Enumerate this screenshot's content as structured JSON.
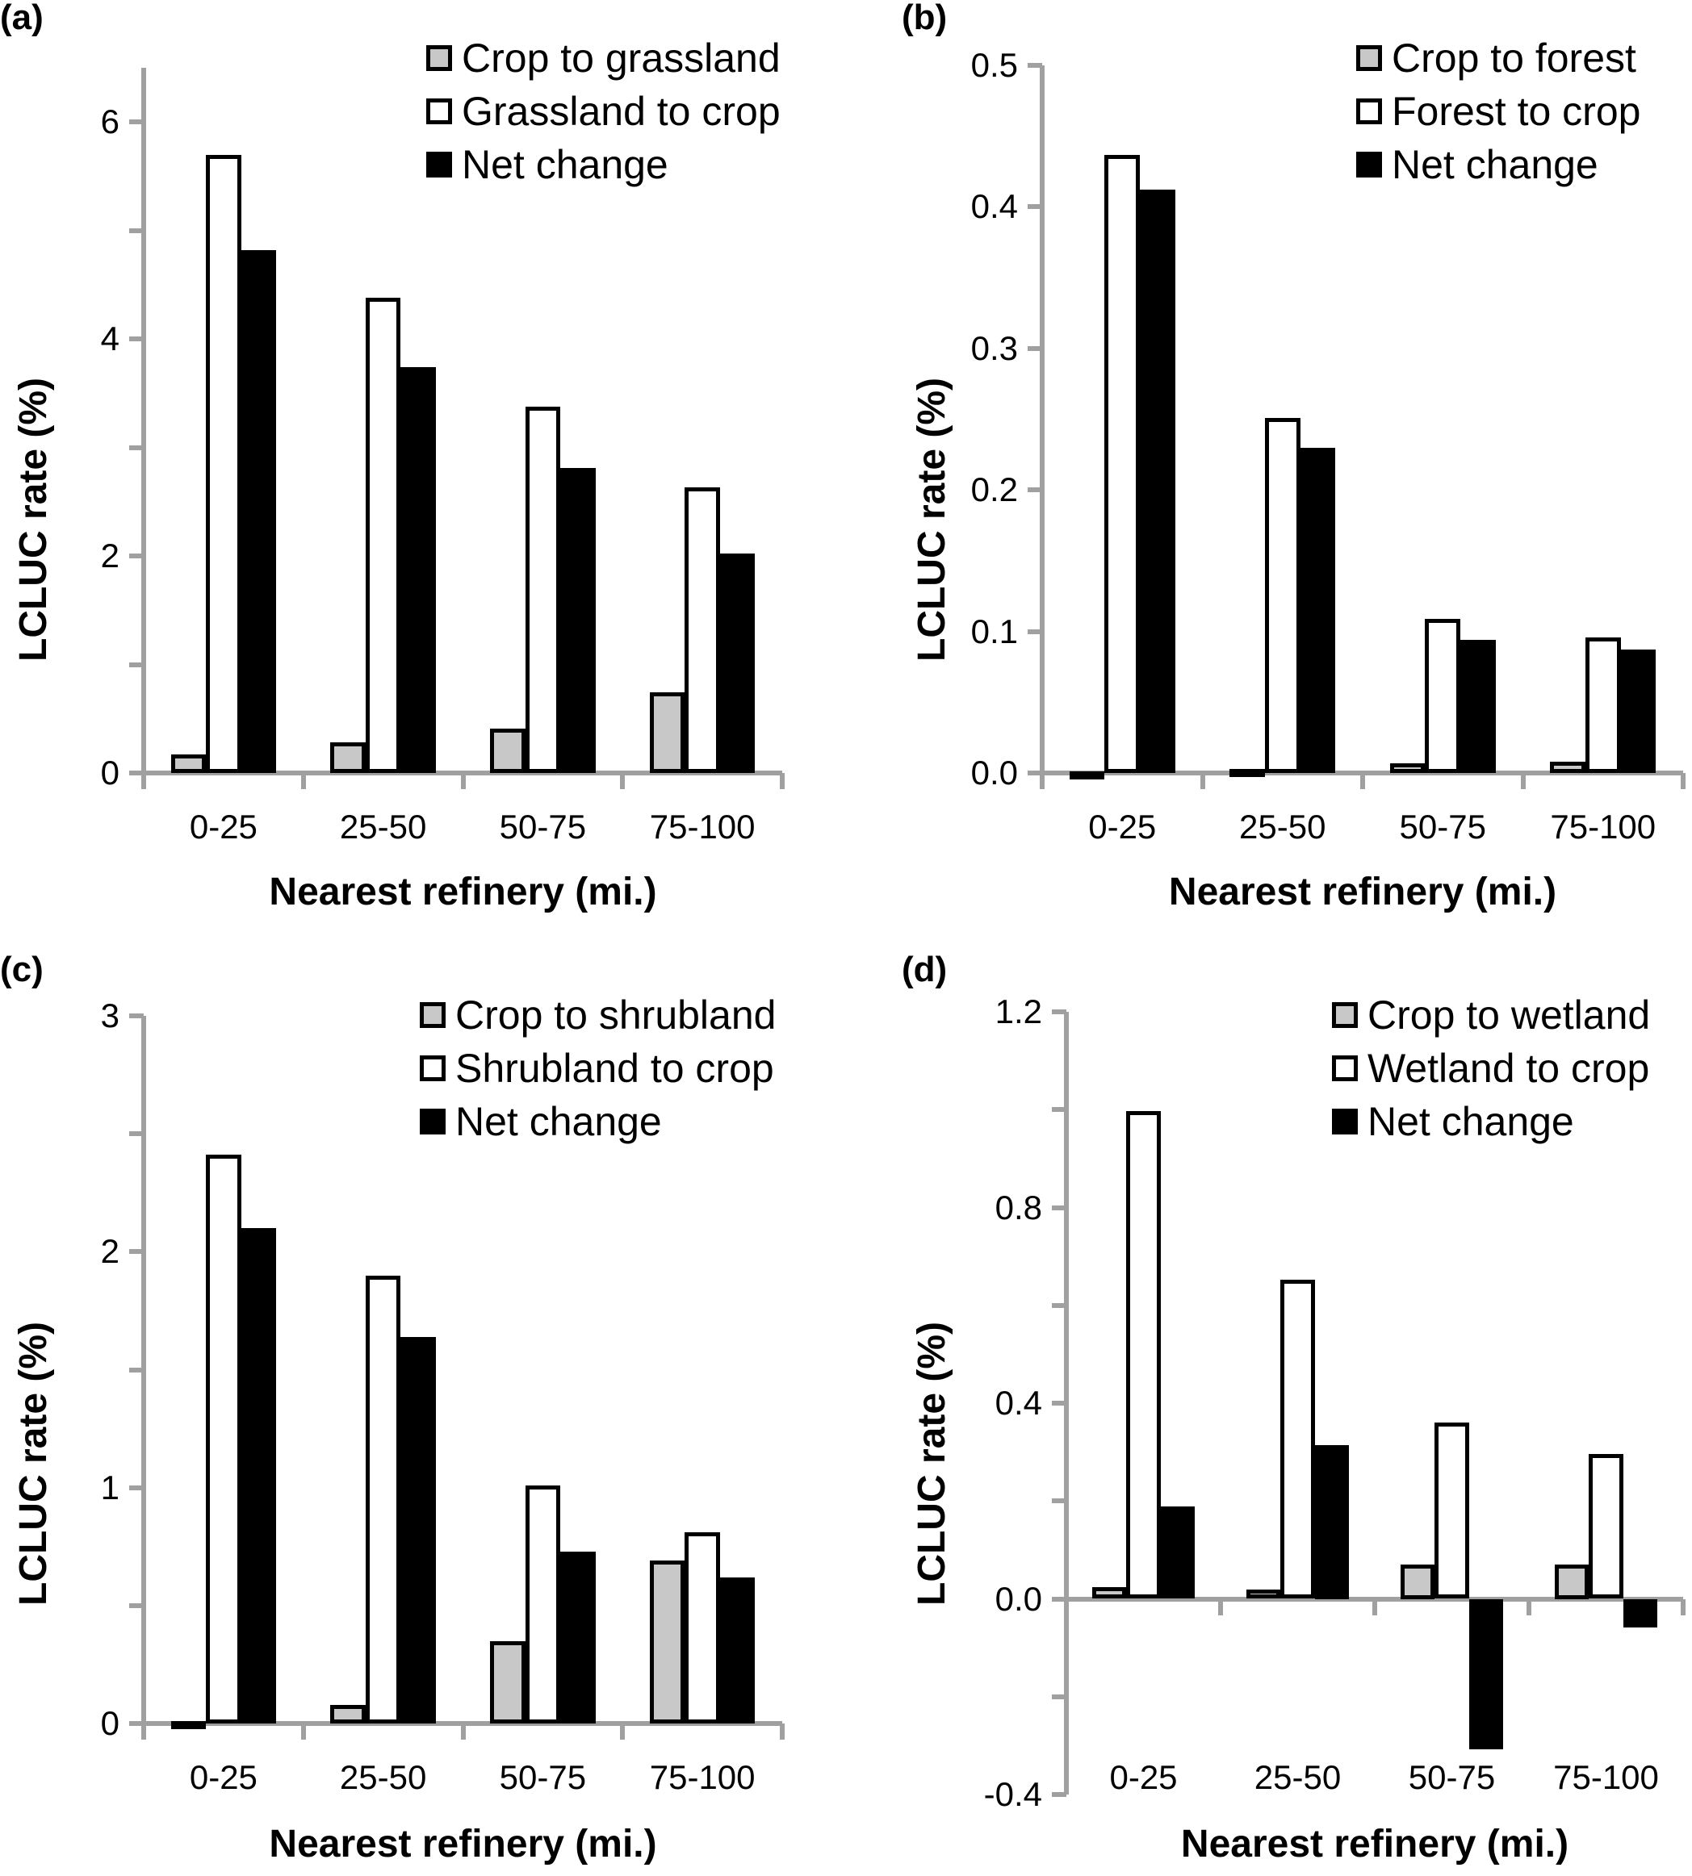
{
  "chart_data": [
    {
      "id": "a",
      "panel_label": "(a)",
      "type": "bar",
      "title": "",
      "xlabel": "Nearest refinery (mi.)",
      "ylabel": "LCLUC rate (%)",
      "categories": [
        "0-25",
        "25-50",
        "50-75",
        "75-100"
      ],
      "ylim": [
        0,
        6.5
      ],
      "yticks": [
        0,
        1,
        2,
        3,
        4,
        5,
        6
      ],
      "ytick_labels": [
        "0",
        "",
        "2",
        "",
        "4",
        "",
        "6"
      ],
      "legend_position": "top-right",
      "grid": false,
      "series": [
        {
          "name": "Crop to grassland",
          "color": "#c8c8c8",
          "values": [
            0.17,
            0.28,
            0.41,
            0.74
          ]
        },
        {
          "name": "Grassland to crop",
          "color": "#ffffff",
          "values": [
            5.7,
            4.38,
            3.38,
            2.63
          ]
        },
        {
          "name": "Net change",
          "color": "#000000",
          "values": [
            4.82,
            3.74,
            2.81,
            2.02
          ]
        }
      ]
    },
    {
      "id": "b",
      "panel_label": "(b)",
      "type": "bar",
      "title": "",
      "xlabel": "Nearest refinery (mi.)",
      "ylabel": "LCLUC rate (%)",
      "categories": [
        "0-25",
        "25-50",
        "50-75",
        "75-100"
      ],
      "ylim": [
        0,
        0.5
      ],
      "yticks": [
        0,
        0.1,
        0.2,
        0.3,
        0.4,
        0.5
      ],
      "ytick_labels": [
        "0.0",
        "0.1",
        "0.2",
        "0.3",
        "0.4",
        "0.5"
      ],
      "legend_position": "top-right",
      "grid": false,
      "series": [
        {
          "name": "Crop to forest",
          "color": "#c8c8c8",
          "values": [
            0.001,
            0.003,
            0.007,
            0.008
          ]
        },
        {
          "name": "Forest to crop",
          "color": "#ffffff",
          "values": [
            0.437,
            0.251,
            0.109,
            0.096
          ]
        },
        {
          "name": "Net change",
          "color": "#000000",
          "values": [
            0.412,
            0.23,
            0.094,
            0.087
          ]
        }
      ]
    },
    {
      "id": "c",
      "panel_label": "(c)",
      "type": "bar",
      "title": "",
      "xlabel": "Nearest refinery (mi.)",
      "ylabel": "LCLUC rate (%)",
      "categories": [
        "0-25",
        "25-50",
        "50-75",
        "75-100"
      ],
      "ylim": [
        0,
        3
      ],
      "yticks": [
        0,
        0.5,
        1,
        1.5,
        2,
        2.5,
        3
      ],
      "ytick_labels": [
        "0",
        "",
        "1",
        "",
        "2",
        "",
        "3"
      ],
      "legend_position": "top-right",
      "grid": false,
      "series": [
        {
          "name": "Crop to shrubland",
          "color": "#c8c8c8",
          "values": [
            0.01,
            0.08,
            0.35,
            0.69
          ]
        },
        {
          "name": "Shrubland to crop",
          "color": "#ffffff",
          "values": [
            2.41,
            1.9,
            1.01,
            0.81
          ]
        },
        {
          "name": "Net change",
          "color": "#000000",
          "values": [
            2.1,
            1.64,
            0.73,
            0.62
          ]
        }
      ]
    },
    {
      "id": "d",
      "panel_label": "(d)",
      "type": "bar",
      "title": "",
      "xlabel": "Nearest refinery (mi.)",
      "ylabel": "LCLUC rate (%)",
      "categories": [
        "0-25",
        "25-50",
        "50-75",
        "75-100"
      ],
      "ylim": [
        -0.4,
        1.2
      ],
      "yticks": [
        -0.4,
        -0.2,
        0,
        0.2,
        0.4,
        0.6,
        0.8,
        1.0,
        1.2
      ],
      "ytick_labels": [
        "-0.4",
        "",
        "0.0",
        "",
        "0.4",
        "",
        "0.8",
        "",
        "1.2"
      ],
      "legend_position": "top-right",
      "grid": false,
      "series": [
        {
          "name": "Crop to wetland",
          "color": "#c8c8c8",
          "values": [
            0.024,
            0.019,
            0.07,
            0.07
          ]
        },
        {
          "name": "Wetland to crop",
          "color": "#ffffff",
          "values": [
            0.997,
            0.653,
            0.361,
            0.296
          ]
        },
        {
          "name": "Net change",
          "color": "#000000",
          "values": [
            0.189,
            0.315,
            -0.307,
            -0.058
          ]
        }
      ]
    }
  ]
}
